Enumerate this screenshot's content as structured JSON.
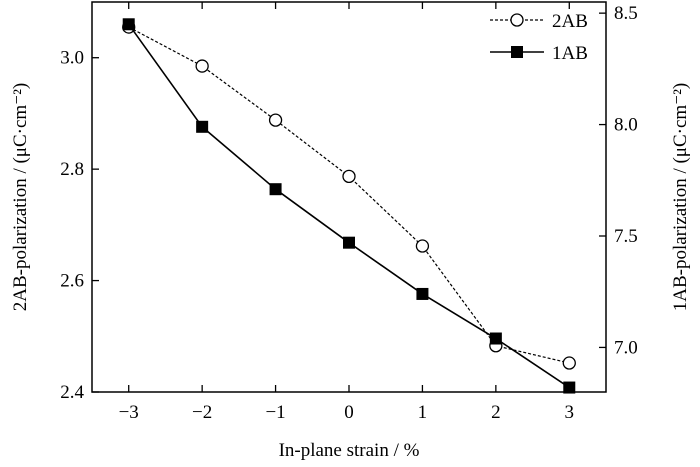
{
  "chart_data": {
    "type": "line",
    "title": "",
    "xlabel": "In-plane strain / %",
    "ylabel_left": "2AB-polarization / (μC·cm⁻²)",
    "ylabel_right": "1AB-polarization / (μC·cm⁻²)",
    "x": [
      -3,
      -2,
      -1,
      0,
      1,
      2,
      3
    ],
    "x_tick_labels": [
      "−3",
      "−2",
      "−1",
      "0",
      "1",
      "2",
      "3"
    ],
    "xlim": [
      -3.5,
      3.5
    ],
    "ylim_left": [
      2.4,
      3.1
    ],
    "ylim_right": [
      6.8,
      8.55
    ],
    "y_left_ticks": [
      2.4,
      2.6,
      2.8,
      3.0
    ],
    "y_left_tick_labels": [
      "2.4",
      "2.6",
      "2.8",
      "3.0"
    ],
    "y_right_ticks": [
      7.0,
      7.5,
      8.0,
      8.5
    ],
    "y_right_tick_labels": [
      "7.0",
      "7.5",
      "8.0",
      "8.5"
    ],
    "grid": false,
    "legend_position": "top-right",
    "series": [
      {
        "name": "2AB",
        "axis": "left",
        "marker": "open-circle",
        "line_style": "dashed",
        "values": [
          3.055,
          2.985,
          2.888,
          2.787,
          2.662,
          2.483,
          2.452
        ]
      },
      {
        "name": "1AB",
        "axis": "right",
        "marker": "filled-square",
        "line_style": "solid",
        "values": [
          8.45,
          7.99,
          7.71,
          7.47,
          7.24,
          7.04,
          6.82
        ]
      }
    ]
  }
}
